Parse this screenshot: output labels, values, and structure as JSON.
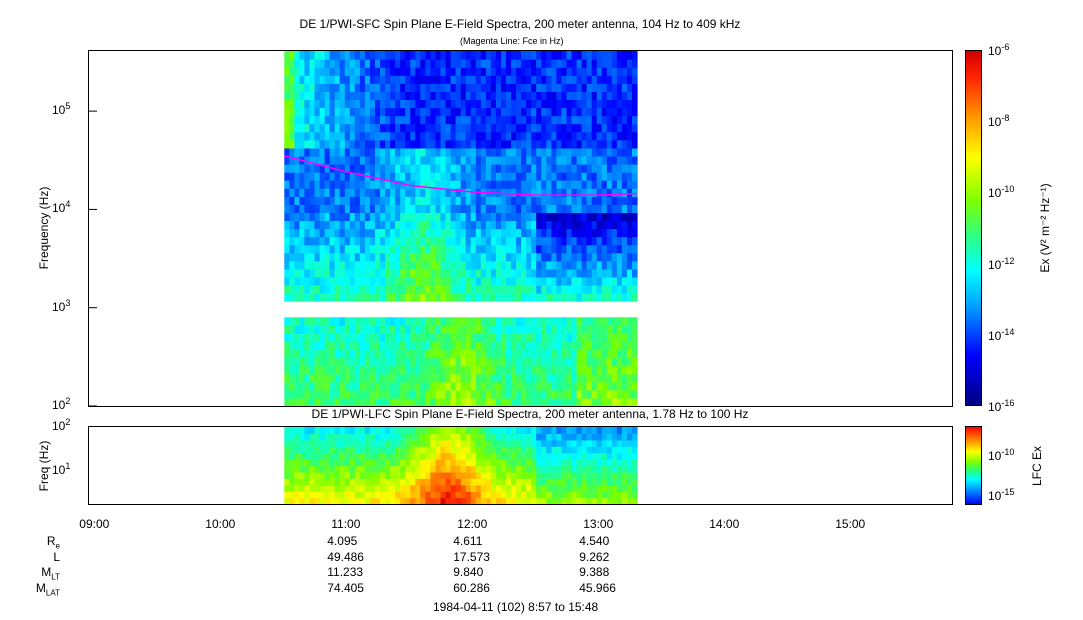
{
  "chart_data": [
    {
      "type": "heatmap",
      "title": "DE 1/PWI-SFC  Spin Plane E-Field Spectra, 200 meter antenna, 104 Hz to 409 kHz",
      "subtitle": "(Magenta Line: Fce in Hz)",
      "ylabel": "Frequency (Hz)",
      "yscale": "log",
      "ylim": [
        100,
        409000
      ],
      "yticks": [
        {
          "value": 100,
          "base": "10",
          "exp": "2"
        },
        {
          "value": 1000,
          "base": "10",
          "exp": "3"
        },
        {
          "value": 10000,
          "base": "10",
          "exp": "4"
        },
        {
          "value": 100000,
          "base": "10",
          "exp": "5"
        }
      ],
      "data_span_hours": [
        10.5,
        13.3
      ],
      "colorbar": {
        "label": "Ex (V² m⁻² Hz⁻¹)",
        "scale": "log",
        "range": [
          1e-16,
          1e-06
        ],
        "ticks": [
          {
            "base": "10",
            "exp": "-6"
          },
          {
            "base": "10",
            "exp": "-8"
          },
          {
            "base": "10",
            "exp": "-10"
          },
          {
            "base": "10",
            "exp": "-12"
          },
          {
            "base": "10",
            "exp": "-14"
          },
          {
            "base": "10",
            "exp": "-16"
          }
        ]
      },
      "fce_line": {
        "name": "Fce",
        "color": "#ff00ff",
        "t": [
          10.5,
          11.0,
          11.5,
          12.0,
          12.5,
          13.0,
          13.3
        ],
        "f": [
          35000,
          24000,
          17500,
          15000,
          14000,
          14000,
          14500
        ]
      }
    },
    {
      "type": "heatmap",
      "title": "DE 1/PWI-LFC  Spin Plane E-Field Spectra, 200 meter antenna, 1.78 Hz to 100 Hz",
      "ylabel": "Freq (Hz)",
      "yscale": "log",
      "ylim": [
        1.78,
        100
      ],
      "yticks": [
        {
          "value": 10,
          "base": "10",
          "exp": "1"
        },
        {
          "value": 100,
          "base": "10",
          "exp": "2"
        }
      ],
      "data_span_hours": [
        10.5,
        13.3
      ],
      "colorbar": {
        "label": "LFC Ex",
        "scale": "log",
        "ticks": [
          {
            "base": "10",
            "exp": "-10"
          },
          {
            "base": "10",
            "exp": "-15"
          }
        ]
      }
    }
  ],
  "time_axis": {
    "ticks": [
      "09:00",
      "10:00",
      "11:00",
      "12:00",
      "13:00",
      "14:00",
      "15:00"
    ],
    "xlim_hours": [
      8.95,
      15.8
    ],
    "footer": "1984-04-11 (102) 8:57 to 15:48"
  },
  "ephemeris": {
    "rows": [
      {
        "main": "R",
        "sub": "e",
        "values": [
          "4.095",
          "4.611",
          "4.540"
        ]
      },
      {
        "main": "L",
        "sub": "",
        "values": [
          "49.486",
          "17.573",
          "9.262"
        ]
      },
      {
        "main": "M",
        "sub": "LT",
        "values": [
          "11.233",
          "9.840",
          "9.388"
        ]
      },
      {
        "main": "M",
        "sub": "LAT",
        "values": [
          "74.405",
          "60.286",
          "45.966"
        ]
      }
    ]
  }
}
